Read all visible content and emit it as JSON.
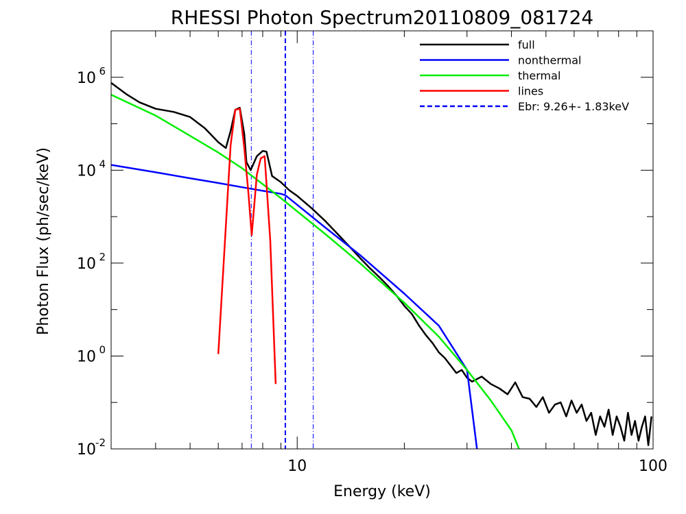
{
  "chart_data": {
    "type": "line",
    "title": "RHESSI Photon Spectrum20110809_081724",
    "xlabel": "Energy (keV)",
    "ylabel": "Photon Flux (ph/sec/keV)",
    "x_scale": "log",
    "y_scale": "log",
    "xlim": [
      3,
      100
    ],
    "ylim": [
      0.01,
      10000000
    ],
    "x_ticks": [
      {
        "value": 10,
        "label": "10"
      },
      {
        "value": 100,
        "label": "100"
      }
    ],
    "y_ticks": [
      {
        "value": 0.01,
        "base": "10",
        "exp": "-2"
      },
      {
        "value": 1,
        "base": "10",
        "exp": "0"
      },
      {
        "value": 100,
        "base": "10",
        "exp": "2"
      },
      {
        "value": 10000,
        "base": "10",
        "exp": "4"
      },
      {
        "value": 1000000,
        "base": "10",
        "exp": "6"
      }
    ],
    "grid": false,
    "legend_position": "top-right",
    "vlines": [
      {
        "x": 7.43,
        "style": "dashdot",
        "color": "#0000ff"
      },
      {
        "x": 9.26,
        "style": "dashed",
        "color": "#0000ff"
      },
      {
        "x": 11.09,
        "style": "dashdot",
        "color": "#0000ff"
      }
    ],
    "legend_dashed_label": "Ebr:   9.26+-  1.83keV",
    "series": [
      {
        "name": "full",
        "color": "#000000",
        "x": [
          3.0,
          3.3,
          3.6,
          4.0,
          4.5,
          5.0,
          5.5,
          6.0,
          6.3,
          6.5,
          6.7,
          6.9,
          7.1,
          7.2,
          7.4,
          7.7,
          8.0,
          8.2,
          8.5,
          9.0,
          9.5,
          10.0,
          11.0,
          12.0,
          13.0,
          14.0,
          15.0,
          16.0,
          17.0,
          18.0,
          19.0,
          20.0,
          21.0,
          22.0,
          23.0,
          24.0,
          25.0,
          26.0,
          27.0,
          28.0,
          29.0,
          30.0,
          31.0,
          33.0,
          35.0,
          37.0,
          39.0,
          41.0,
          43.0,
          45.0,
          47.0,
          49.0,
          51.0,
          53.0,
          55.0,
          57.0,
          59.0,
          61.0,
          63.0,
          65.0,
          67.0,
          69.0,
          71.0,
          73.0,
          75.0,
          77.0,
          79.0,
          81.0,
          83.0,
          85.0,
          87.0,
          89.0,
          91.0,
          93.0,
          95.0,
          97.0,
          99.0
        ],
        "y": [
          760000,
          440000,
          290000,
          210000,
          180000,
          140000,
          80000,
          40000,
          30000,
          70000,
          200000,
          220000,
          60000,
          15000,
          10000,
          20000,
          26000,
          25000,
          7500,
          5500,
          3700,
          2800,
          1500,
          800,
          420,
          230,
          130,
          78,
          50,
          32,
          20,
          12,
          8,
          4.5,
          2.8,
          1.9,
          1.2,
          0.9,
          0.62,
          0.43,
          0.5,
          0.34,
          0.28,
          0.36,
          0.25,
          0.2,
          0.15,
          0.27,
          0.13,
          0.12,
          0.08,
          0.13,
          0.06,
          0.09,
          0.1,
          0.05,
          0.11,
          0.06,
          0.09,
          0.04,
          0.06,
          0.02,
          0.05,
          0.03,
          0.07,
          0.02,
          0.05,
          0.03,
          0.015,
          0.06,
          0.02,
          0.04,
          0.015,
          0.03,
          0.05,
          0.012,
          0.05
        ]
      },
      {
        "name": "nonthermal",
        "color": "#0000ff",
        "x": [
          3.0,
          4.0,
          5.0,
          6.0,
          7.0,
          8.0,
          9.0,
          9.26,
          10.0,
          12.0,
          15.0,
          20.0,
          25.0,
          30.0,
          32.0
        ],
        "y": [
          13000,
          9000,
          6700,
          5300,
          4300,
          3600,
          3100,
          2900,
          1800,
          580,
          150,
          22,
          4.5,
          0.5,
          0.01
        ]
      },
      {
        "name": "thermal",
        "color": "#00ee00",
        "x": [
          3.0,
          4.0,
          5.0,
          6.0,
          7.0,
          8.0,
          9.0,
          10.0,
          12.0,
          15.0,
          20.0,
          25.0,
          30.0,
          35.0,
          40.0,
          42.0
        ],
        "y": [
          420000,
          150000,
          55000,
          24000,
          11000,
          5000,
          2500,
          1300,
          420,
          100,
          14,
          2.6,
          0.5,
          0.11,
          0.025,
          0.01
        ]
      },
      {
        "name": "lines",
        "color": "#ff0000",
        "x": [
          6.0,
          6.5,
          6.7,
          6.9,
          7.1,
          7.3,
          7.45,
          7.7,
          7.9,
          8.1,
          8.4,
          8.7
        ],
        "y": [
          1.1,
          35000,
          200000,
          210000,
          30000,
          3000,
          400,
          8000,
          18000,
          20000,
          300,
          0.25
        ]
      }
    ]
  }
}
